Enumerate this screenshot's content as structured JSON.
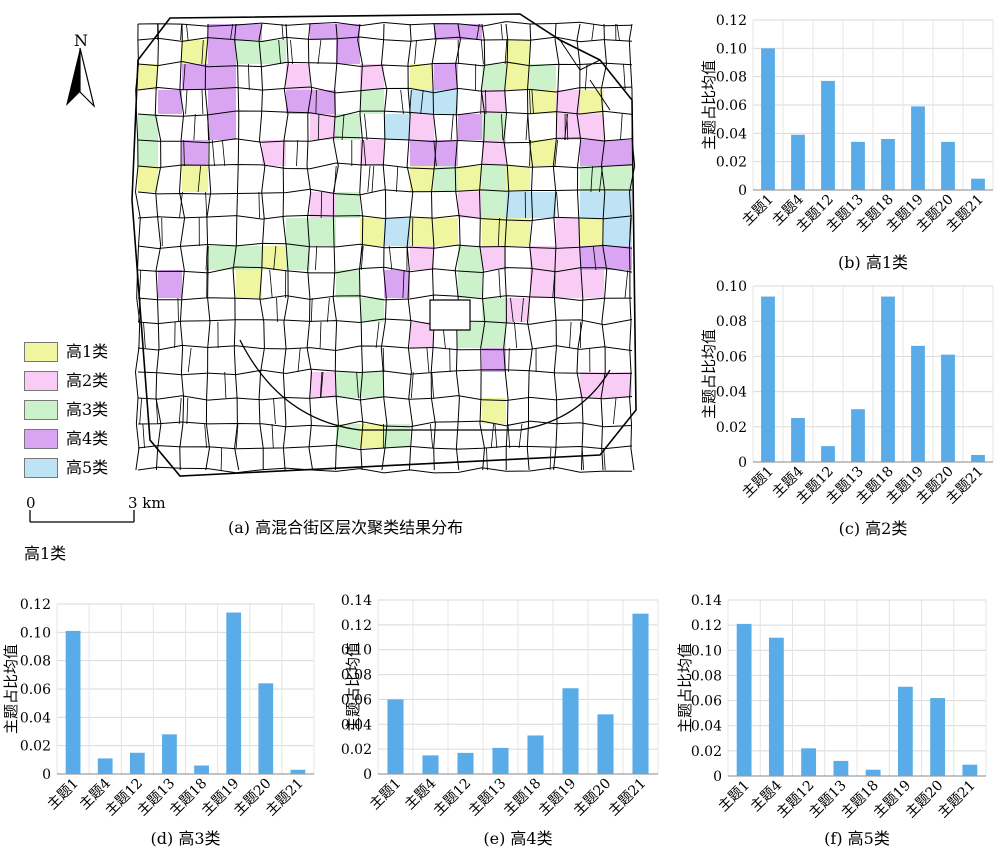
{
  "map": {
    "north_label": "N",
    "caption": "(a) 高混合街区层次聚类结果分布",
    "scale_left": "0",
    "scale_right": "3 km",
    "stray_label": "高1类"
  },
  "legend": [
    {
      "label": "高1类",
      "color": "#f0f6a0"
    },
    {
      "label": "高2类",
      "color": "#f8ccf4"
    },
    {
      "label": "高3类",
      "color": "#ccf2cc"
    },
    {
      "label": "高4类",
      "color": "#d9a5f2"
    },
    {
      "label": "高5类",
      "color": "#bde3f5"
    }
  ],
  "chart_data": [
    {
      "id": "b",
      "type": "bar",
      "caption": "(b) 高1类",
      "ylabel": "主题占比均值",
      "categories": [
        "主题1",
        "主题4",
        "主题12",
        "主题13",
        "主题18",
        "主题19",
        "主题20",
        "主题21"
      ],
      "values": [
        0.1,
        0.039,
        0.077,
        0.034,
        0.036,
        0.059,
        0.034,
        0.008
      ],
      "ylim": [
        0,
        0.12
      ],
      "yticks": [
        "0",
        "0.02",
        "0.04",
        "0.06",
        "0.08",
        "0.10",
        "0.12"
      ],
      "bar_color": "#5aace8",
      "grid": true
    },
    {
      "id": "c",
      "type": "bar",
      "caption": "(c) 高2类",
      "ylabel": "主题占比均值",
      "categories": [
        "主题1",
        "主题4",
        "主题12",
        "主题13",
        "主题18",
        "主题19",
        "主题20",
        "主题21"
      ],
      "values": [
        0.094,
        0.025,
        0.009,
        0.03,
        0.094,
        0.066,
        0.061,
        0.004
      ],
      "ylim": [
        0,
        0.1
      ],
      "yticks": [
        "0",
        "0.02",
        "0.04",
        "0.06",
        "0.08",
        "0.10"
      ],
      "bar_color": "#5aace8",
      "grid": true
    },
    {
      "id": "d",
      "type": "bar",
      "caption": "(d) 高3类",
      "ylabel": "主题占比均值",
      "categories": [
        "主题1",
        "主题4",
        "主题12",
        "主题13",
        "主题18",
        "主题19",
        "主题20",
        "主题21"
      ],
      "values": [
        0.101,
        0.011,
        0.015,
        0.028,
        0.006,
        0.114,
        0.064,
        0.003
      ],
      "ylim": [
        0,
        0.12
      ],
      "yticks": [
        "0",
        "0.02",
        "0.04",
        "0.06",
        "0.08",
        "0.10",
        "0.12"
      ],
      "bar_color": "#5aace8",
      "grid": true
    },
    {
      "id": "e",
      "type": "bar",
      "caption": "(e) 高4类",
      "ylabel": "主题占比均值",
      "categories": [
        "主题1",
        "主题4",
        "主题12",
        "主题13",
        "主题18",
        "主题19",
        "主题20",
        "主题21"
      ],
      "values": [
        0.06,
        0.015,
        0.017,
        0.021,
        0.031,
        0.069,
        0.048,
        0.129
      ],
      "ylim": [
        0,
        0.14
      ],
      "yticks": [
        "0",
        "0.02",
        "0.04",
        "0.06",
        "0.08",
        "0.10",
        "0.12",
        "0.14"
      ],
      "bar_color": "#5aace8",
      "grid": true
    },
    {
      "id": "f",
      "type": "bar",
      "caption": "(f) 高5类",
      "ylabel": "主题占比均值",
      "categories": [
        "主题1",
        "主题4",
        "主题12",
        "主题13",
        "主题18",
        "主题19",
        "主题20",
        "主题21"
      ],
      "values": [
        0.121,
        0.11,
        0.022,
        0.012,
        0.005,
        0.071,
        0.062,
        0.009
      ],
      "ylim": [
        0,
        0.14
      ],
      "yticks": [
        "0",
        "0.02",
        "0.04",
        "0.06",
        "0.08",
        "0.10",
        "0.12",
        "0.14"
      ],
      "bar_color": "#5aace8",
      "grid": true
    }
  ]
}
